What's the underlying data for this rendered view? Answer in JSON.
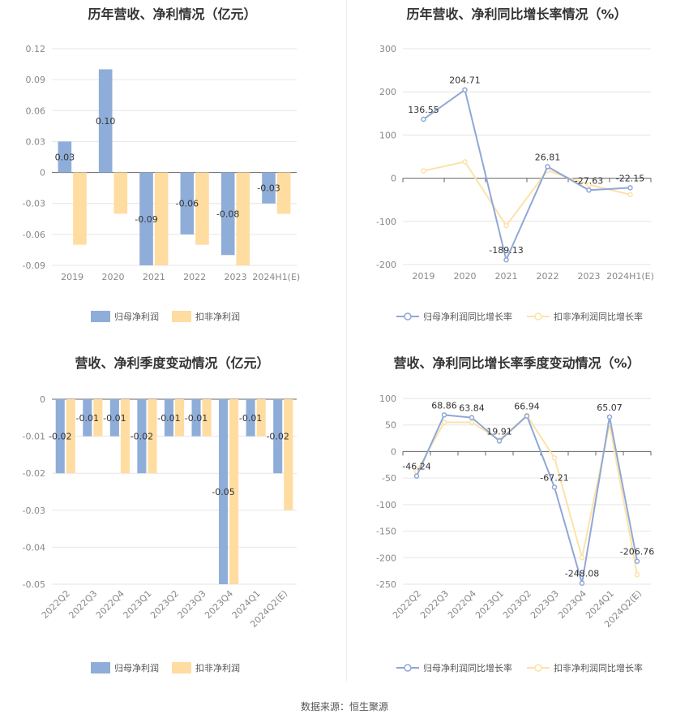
{
  "colors": {
    "series1": "#8fadd9",
    "series2": "#ffdca0",
    "series1_line": "#8fa8d6",
    "series2_line": "#fde2a8"
  },
  "source": "数据来源：恒生聚源",
  "chart_data": [
    {
      "type": "bar",
      "title": "历年营收、净利情况（亿元）",
      "categories": [
        "2019",
        "2020",
        "2021",
        "2022",
        "2023",
        "2024H1(E)"
      ],
      "series": [
        {
          "name": "归母净利润",
          "values": [
            0.03,
            0.1,
            -0.09,
            -0.06,
            -0.08,
            -0.03
          ]
        },
        {
          "name": "扣非净利润",
          "values": [
            -0.07,
            -0.04,
            -0.09,
            -0.07,
            -0.09,
            -0.04
          ]
        }
      ],
      "data_labels": [
        "0.03",
        "0.10",
        "-0.09",
        "-0.06",
        "-0.08",
        "-0.03"
      ],
      "y_ticks": [
        0.12,
        0.09,
        0.06,
        0.03,
        0,
        -0.03,
        -0.06,
        -0.09
      ],
      "y_tick_labels": [
        "0.12",
        "0.09",
        "0.06",
        "0.03",
        "0",
        "-0.03",
        "-0.06",
        "-0.09"
      ],
      "ylim": [
        -0.09,
        0.12
      ],
      "legend": [
        "归母净利润",
        "扣非净利润"
      ]
    },
    {
      "type": "line",
      "title": "历年营收、净利同比增长率情况（%）",
      "categories": [
        "2019",
        "2020",
        "2021",
        "2022",
        "2023",
        "2024H1(E)"
      ],
      "series": [
        {
          "name": "归母净利润同比增长率",
          "values": [
            136.55,
            204.71,
            -189.13,
            26.81,
            -27.63,
            -22.15
          ]
        },
        {
          "name": "扣非净利润同比增长率",
          "values": [
            17,
            38,
            -110,
            18,
            -15,
            -38
          ]
        }
      ],
      "data_labels": [
        "136.55",
        "204.71",
        "-189.13",
        "26.81",
        "-27.63",
        "-22.15"
      ],
      "y_ticks": [
        300,
        200,
        100,
        0,
        -100,
        -200
      ],
      "y_tick_labels": [
        "300",
        "200",
        "100",
        "0",
        "-100",
        "-200"
      ],
      "ylim": [
        -200,
        300
      ],
      "legend": [
        "归母净利润同比增长率",
        "扣非净利润同比增长率"
      ]
    },
    {
      "type": "bar",
      "title": "营收、净利季度变动情况（亿元）",
      "categories": [
        "2022Q2",
        "2022Q3",
        "2022Q4",
        "2023Q1",
        "2023Q2",
        "2023Q3",
        "2023Q4",
        "2024Q1",
        "2024Q2(E)"
      ],
      "series": [
        {
          "name": "归母净利润",
          "values": [
            -0.02,
            -0.01,
            -0.01,
            -0.02,
            -0.01,
            -0.01,
            -0.05,
            -0.01,
            -0.02
          ]
        },
        {
          "name": "扣非净利润",
          "values": [
            -0.02,
            -0.01,
            -0.02,
            -0.02,
            -0.01,
            -0.01,
            -0.05,
            -0.01,
            -0.03
          ]
        }
      ],
      "data_labels": [
        "-0.02",
        "-0.01",
        "-0.01",
        "-0.02",
        "-0.01",
        "-0.01",
        "-0.05",
        "-0.01",
        "-0.02"
      ],
      "y_ticks": [
        0,
        -0.01,
        -0.02,
        -0.03,
        -0.04,
        -0.05
      ],
      "y_tick_labels": [
        "0",
        "-0.01",
        "-0.02",
        "-0.03",
        "-0.04",
        "-0.05"
      ],
      "ylim": [
        -0.05,
        0
      ],
      "legend": [
        "归母净利润",
        "扣非净利润"
      ]
    },
    {
      "type": "line",
      "title": "营收、净利同比增长率季度变动情况（%）",
      "categories": [
        "2022Q2",
        "2022Q3",
        "2022Q4",
        "2023Q1",
        "2023Q2",
        "2023Q3",
        "2023Q4",
        "2024Q1",
        "2024Q2(E)"
      ],
      "series": [
        {
          "name": "归母净利润同比增长率",
          "values": [
            -46.24,
            68.86,
            63.84,
            19.91,
            66.94,
            -67.21,
            -248.08,
            65.07,
            -206.76
          ]
        },
        {
          "name": "扣非净利润同比增长率",
          "values": [
            -38,
            55,
            55,
            22,
            68,
            -12,
            -200,
            52,
            -232
          ]
        }
      ],
      "data_labels": [
        "-46.24",
        "68.86",
        "63.84",
        "19.91",
        "66.94",
        "-67.21",
        "-248.08",
        "65.07",
        "-206.76"
      ],
      "y_ticks": [
        100,
        50,
        0,
        -50,
        -100,
        -150,
        -200,
        -250
      ],
      "y_tick_labels": [
        "100",
        "50",
        "0",
        "-50",
        "-100",
        "-150",
        "-200",
        "-250"
      ],
      "ylim": [
        -250,
        100
      ],
      "legend": [
        "归母净利润同比增长率",
        "扣非净利润同比增长率"
      ]
    }
  ]
}
